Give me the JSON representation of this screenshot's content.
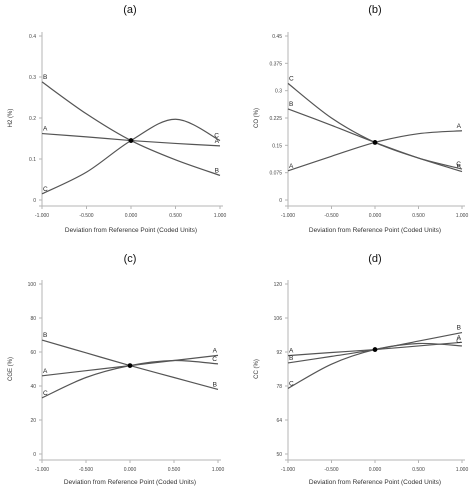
{
  "chart_data": [
    {
      "panel": "(a)",
      "type": "line",
      "ylabel": "H2 (%)",
      "xlabel": "Deviation from Reference Point (Coded Units)",
      "xlim": [
        -1,
        1
      ],
      "ylim": [
        0,
        0.4
      ],
      "xticks": [
        "-1.000",
        "-0.500",
        "0.000",
        "0.500",
        "1.000"
      ],
      "yticks": [
        "0",
        "0.1",
        "0.2",
        "0.3",
        "0.4"
      ],
      "reference_point": [
        0,
        0.145
      ],
      "series": [
        {
          "name": "A",
          "points": [
            [
              -1,
              0.162
            ],
            [
              -0.5,
              0.154
            ],
            [
              0,
              0.145
            ],
            [
              0.5,
              0.138
            ],
            [
              1,
              0.132
            ]
          ]
        },
        {
          "name": "B",
          "points": [
            [
              -1,
              0.288
            ],
            [
              -0.5,
              0.21
            ],
            [
              0,
              0.145
            ],
            [
              0.5,
              0.098
            ],
            [
              1,
              0.06
            ]
          ]
        },
        {
          "name": "C",
          "points": [
            [
              -1,
              0.015
            ],
            [
              -0.5,
              0.068
            ],
            [
              0,
              0.145
            ],
            [
              0.5,
              0.197
            ],
            [
              1,
              0.145
            ]
          ]
        }
      ]
    },
    {
      "panel": "(b)",
      "type": "line",
      "ylabel": "CO (%)",
      "xlabel": "Deviation from Reference Point (Coded Units)",
      "xlim": [
        -1,
        1
      ],
      "ylim": [
        0,
        0.45
      ],
      "xticks": [
        "-1.000",
        "-0.500",
        "0.000",
        "0.500",
        "1.000"
      ],
      "yticks": [
        "0",
        "0.075",
        "0.15",
        "0.225",
        "0.3",
        "0.375",
        "0.45"
      ],
      "reference_point": [
        0,
        0.158
      ],
      "series": [
        {
          "name": "A",
          "points": [
            [
              -1,
              0.08
            ],
            [
              -0.5,
              0.12
            ],
            [
              0,
              0.158
            ],
            [
              0.5,
              0.182
            ],
            [
              1,
              0.19
            ]
          ]
        },
        {
          "name": "B",
          "points": [
            [
              -1,
              0.25
            ],
            [
              -0.5,
              0.205
            ],
            [
              0,
              0.158
            ],
            [
              0.5,
              0.115
            ],
            [
              1,
              0.078
            ]
          ]
        },
        {
          "name": "C",
          "points": [
            [
              -1,
              0.32
            ],
            [
              -0.5,
              0.225
            ],
            [
              0,
              0.158
            ],
            [
              0.5,
              0.115
            ],
            [
              1,
              0.085
            ]
          ]
        }
      ]
    },
    {
      "panel": "(c)",
      "type": "line",
      "ylabel": "CGE (%)",
      "xlabel": "Deviation from Reference Point (Coded Units)",
      "xlim": [
        -1,
        1
      ],
      "ylim": [
        0,
        100
      ],
      "xticks": [
        "-1.000",
        "-0.500",
        "0.000",
        "0.500",
        "1.000"
      ],
      "yticks": [
        "0",
        "20",
        "40",
        "60",
        "80",
        "100"
      ],
      "reference_point": [
        0,
        52
      ],
      "series": [
        {
          "name": "A",
          "points": [
            [
              -1,
              46
            ],
            [
              -0.5,
              49
            ],
            [
              0,
              52
            ],
            [
              0.5,
              55
            ],
            [
              1,
              58
            ]
          ]
        },
        {
          "name": "B",
          "points": [
            [
              -1,
              67
            ],
            [
              -0.5,
              59.5
            ],
            [
              0,
              52
            ],
            [
              0.5,
              45
            ],
            [
              1,
              38
            ]
          ]
        },
        {
          "name": "C",
          "points": [
            [
              -1,
              33
            ],
            [
              -0.5,
              45
            ],
            [
              0,
              52
            ],
            [
              0.5,
              55
            ],
            [
              1,
              53
            ]
          ]
        }
      ]
    },
    {
      "panel": "(d)",
      "type": "line",
      "ylabel": "CC (%)",
      "xlabel": "Deviation from Reference Point (Coded Units)",
      "xlim": [
        -1,
        1
      ],
      "ylim": [
        50,
        120
      ],
      "xticks": [
        "-1.000",
        "-0.500",
        "0.000",
        "0.500",
        "1.000"
      ],
      "yticks": [
        "50",
        "64",
        "78",
        "92",
        "106",
        "120"
      ],
      "reference_point": [
        0,
        93
      ],
      "series": [
        {
          "name": "A",
          "points": [
            [
              -1,
              90.5
            ],
            [
              -0.5,
              91.8
            ],
            [
              0,
              93
            ],
            [
              0.5,
              94.5
            ],
            [
              1,
              96
            ]
          ]
        },
        {
          "name": "B",
          "points": [
            [
              -1,
              87.5
            ],
            [
              -0.5,
              90.2
            ],
            [
              0,
              93
            ],
            [
              0.5,
              96.5
            ],
            [
              1,
              100
            ]
          ]
        },
        {
          "name": "C",
          "points": [
            [
              -1,
              77
            ],
            [
              -0.5,
              87
            ],
            [
              0,
              93
            ],
            [
              0.5,
              95.5
            ],
            [
              1,
              94.5
            ]
          ]
        }
      ]
    }
  ]
}
